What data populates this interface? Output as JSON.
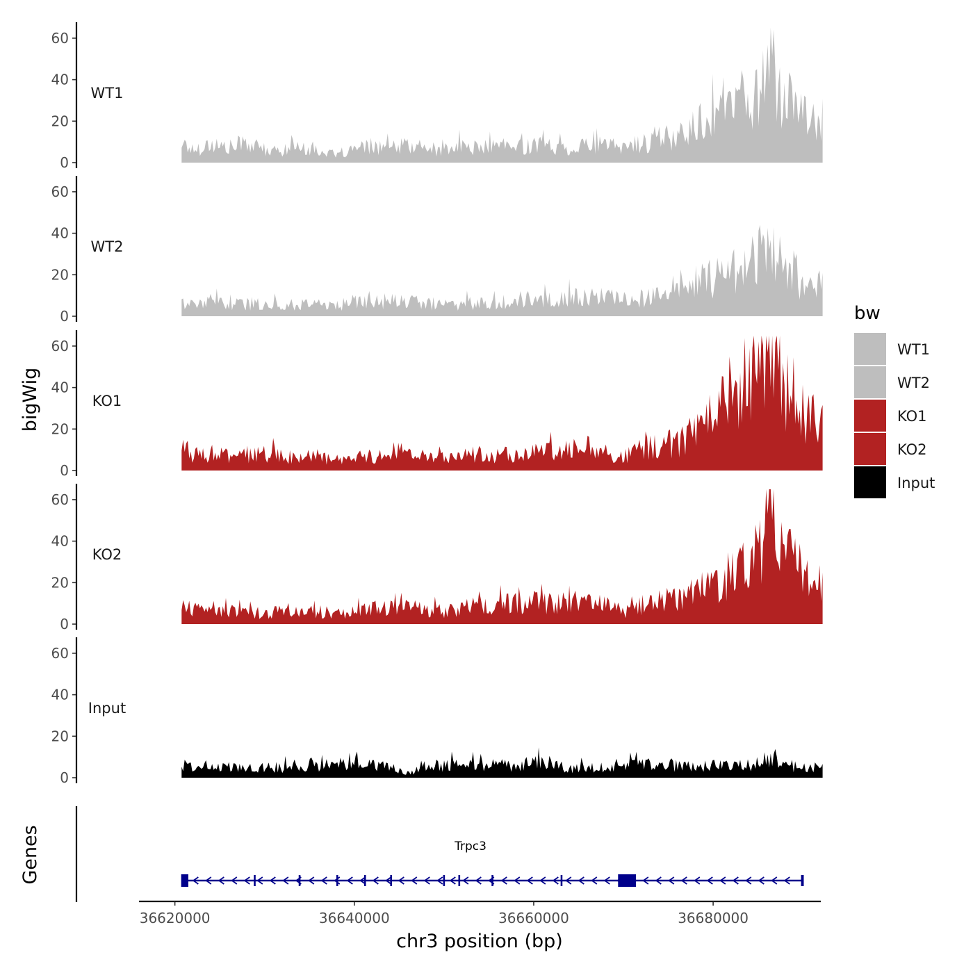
{
  "chart_data": {
    "type": "area",
    "ylabel": "bigWig",
    "xlabel": "chr3 position (bp)",
    "xlim": [
      36616000,
      36692000
    ],
    "x_ticks": [
      36620000,
      36640000,
      36660000,
      36680000
    ],
    "x_tick_labels": [
      "36620000",
      "36640000",
      "36660000",
      "36680000"
    ],
    "ylim": [
      0,
      65
    ],
    "y_ticks": [
      0,
      20,
      40,
      60
    ],
    "y_tick_labels": [
      "0",
      "20",
      "40",
      "60"
    ],
    "legend": {
      "title": "bw",
      "placement": "right",
      "entries": [
        {
          "label": "WT1",
          "color": "#BEBEBE"
        },
        {
          "label": "WT2",
          "color": "#BEBEBE"
        },
        {
          "label": "KO1",
          "color": "#B22222"
        },
        {
          "label": "KO2",
          "color": "#B22222"
        },
        {
          "label": "Input",
          "color": "#000000"
        }
      ]
    },
    "x": [
      36620750,
      36622000,
      36624000,
      36626000,
      36628000,
      36630000,
      36632000,
      36634000,
      36636000,
      36638000,
      36640000,
      36642000,
      36644000,
      36646000,
      36648000,
      36650000,
      36652000,
      36654000,
      36656000,
      36658000,
      36660000,
      36662000,
      36664000,
      36666000,
      36668000,
      36670000,
      36672000,
      36674000,
      36676000,
      36678000,
      36680000,
      36682000,
      36684000,
      36685500,
      36686500,
      36688000,
      36690000,
      36692200
    ],
    "series": [
      {
        "name": "WT1",
        "color": "#BEBEBE",
        "values": [
          10,
          6,
          9,
          7,
          10,
          5,
          6,
          8,
          6,
          3,
          6,
          8,
          7,
          8,
          7,
          6,
          8,
          7,
          8,
          7,
          9,
          8,
          7,
          9,
          8,
          8,
          9,
          11,
          13,
          17,
          26,
          28,
          32,
          36,
          52,
          30,
          22,
          20
        ]
      },
      {
        "name": "WT2",
        "color": "#BEBEBE",
        "values": [
          8,
          5,
          7,
          6,
          6,
          6,
          5,
          6,
          6,
          5,
          7,
          8,
          7,
          7,
          6,
          6,
          6,
          7,
          7,
          8,
          8,
          8,
          9,
          9,
          9,
          8,
          9,
          10,
          12,
          15,
          19,
          22,
          26,
          30,
          34,
          25,
          16,
          14
        ]
      },
      {
        "name": "KO1",
        "color": "#B22222",
        "values": [
          12,
          8,
          8,
          7,
          7,
          8,
          7,
          6,
          7,
          4,
          6,
          7,
          9,
          10,
          6,
          6,
          7,
          8,
          7,
          8,
          10,
          9,
          10,
          11,
          9,
          7,
          10,
          12,
          13,
          18,
          24,
          38,
          44,
          52,
          58,
          40,
          28,
          22
        ]
      },
      {
        "name": "KO2",
        "color": "#B22222",
        "values": [
          8,
          7,
          7,
          7,
          6,
          5,
          6,
          6,
          6,
          5,
          6,
          7,
          8,
          9,
          7,
          6,
          8,
          9,
          9,
          10,
          11,
          10,
          11,
          11,
          9,
          6,
          9,
          11,
          13,
          16,
          20,
          25,
          32,
          38,
          58,
          35,
          24,
          18
        ]
      },
      {
        "name": "Input",
        "color": "#000000",
        "values": [
          6,
          5,
          6,
          5,
          5,
          5,
          5,
          6,
          6,
          6,
          9,
          6,
          5,
          2,
          6,
          6,
          7,
          6,
          6,
          6,
          7,
          7,
          4,
          5,
          5,
          6,
          6,
          6,
          6,
          5,
          6,
          6,
          6,
          7,
          12,
          6,
          5,
          5
        ]
      }
    ],
    "genes_track": {
      "label": "Genes",
      "gene_name": "Trpc3",
      "strand": "-",
      "color": "#00008B",
      "start": 36620750,
      "end": 36690000,
      "exons": [
        {
          "start": 36620700,
          "end": 36621500
        },
        {
          "start": 36628800,
          "end": 36629000
        },
        {
          "start": 36633800,
          "end": 36634000
        },
        {
          "start": 36638000,
          "end": 36638200
        },
        {
          "start": 36641100,
          "end": 36641300
        },
        {
          "start": 36644000,
          "end": 36644200
        },
        {
          "start": 36649900,
          "end": 36650100
        },
        {
          "start": 36651600,
          "end": 36651800
        },
        {
          "start": 36655300,
          "end": 36655500
        },
        {
          "start": 36663000,
          "end": 36663200
        },
        {
          "start": 36669400,
          "end": 36671400
        },
        {
          "start": 36689800,
          "end": 36690100
        }
      ]
    }
  }
}
